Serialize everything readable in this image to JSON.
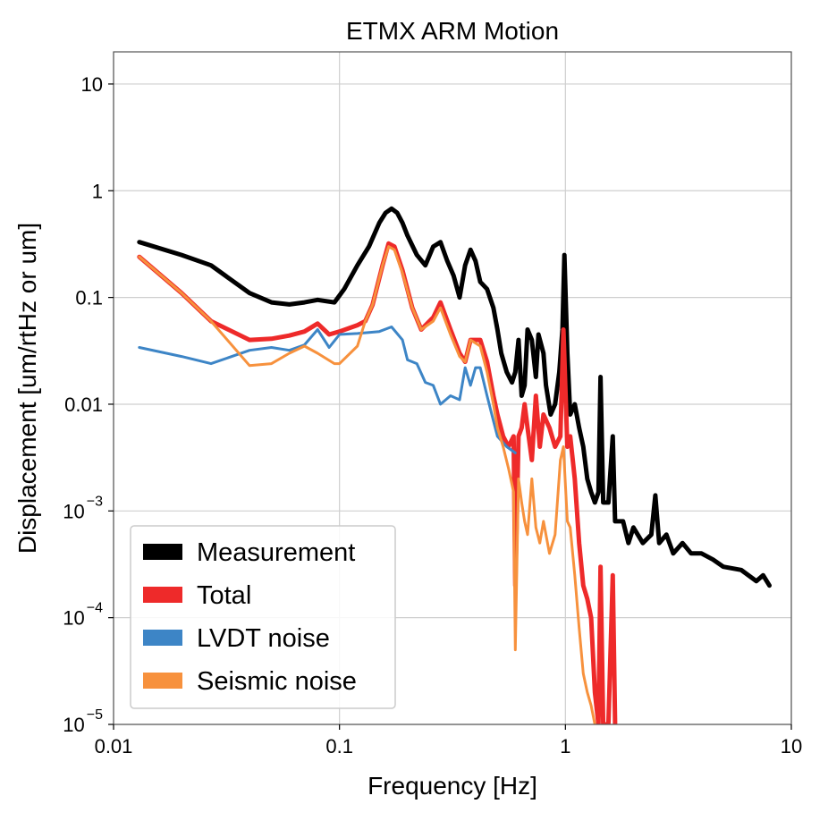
{
  "chart_data": {
    "type": "line",
    "title": "ETMX ARM Motion",
    "xlabel": "Frequency [Hz]",
    "ylabel": "Displacement [um/rtHz or um]",
    "xscale": "log",
    "yscale": "log",
    "xlim": [
      0.01,
      10
    ],
    "ylim": [
      1e-05,
      20
    ],
    "grid": true,
    "legend_position": "lower-left",
    "x_ticks": [
      {
        "value": 0.01,
        "label": "0.01"
      },
      {
        "value": 0.1,
        "label": "0.1"
      },
      {
        "value": 1,
        "label": "1"
      },
      {
        "value": 10,
        "label": "10"
      }
    ],
    "y_ticks": [
      {
        "value": 1e-05,
        "base": "10",
        "exp": "−5"
      },
      {
        "value": 0.0001,
        "base": "10",
        "exp": "−4"
      },
      {
        "value": 0.001,
        "base": "10",
        "exp": "−3"
      },
      {
        "value": 0.01,
        "label": "0.01"
      },
      {
        "value": 0.1,
        "label": "0.1"
      },
      {
        "value": 1,
        "label": "1"
      },
      {
        "value": 10,
        "label": "10"
      }
    ],
    "series": [
      {
        "name": "Measurement",
        "color": "#000000",
        "line_width": 5,
        "points": [
          [
            0.013,
            0.33
          ],
          [
            0.02,
            0.25
          ],
          [
            0.027,
            0.2
          ],
          [
            0.04,
            0.11
          ],
          [
            0.05,
            0.09
          ],
          [
            0.06,
            0.086
          ],
          [
            0.07,
            0.09
          ],
          [
            0.08,
            0.095
          ],
          [
            0.095,
            0.09
          ],
          [
            0.105,
            0.12
          ],
          [
            0.12,
            0.2
          ],
          [
            0.135,
            0.3
          ],
          [
            0.15,
            0.5
          ],
          [
            0.16,
            0.62
          ],
          [
            0.17,
            0.68
          ],
          [
            0.18,
            0.62
          ],
          [
            0.19,
            0.5
          ],
          [
            0.2,
            0.38
          ],
          [
            0.22,
            0.25
          ],
          [
            0.24,
            0.2
          ],
          [
            0.26,
            0.3
          ],
          [
            0.28,
            0.33
          ],
          [
            0.3,
            0.22
          ],
          [
            0.32,
            0.16
          ],
          [
            0.34,
            0.1
          ],
          [
            0.36,
            0.2
          ],
          [
            0.38,
            0.28
          ],
          [
            0.4,
            0.22
          ],
          [
            0.42,
            0.14
          ],
          [
            0.45,
            0.12
          ],
          [
            0.48,
            0.08
          ],
          [
            0.5,
            0.05
          ],
          [
            0.52,
            0.03
          ],
          [
            0.55,
            0.02
          ],
          [
            0.58,
            0.016
          ],
          [
            0.6,
            0.02
          ],
          [
            0.62,
            0.04
          ],
          [
            0.64,
            0.012
          ],
          [
            0.66,
            0.015
          ],
          [
            0.68,
            0.05
          ],
          [
            0.71,
            0.04
          ],
          [
            0.74,
            0.018
          ],
          [
            0.76,
            0.045
          ],
          [
            0.8,
            0.03
          ],
          [
            0.82,
            0.015
          ],
          [
            0.86,
            0.008
          ],
          [
            0.9,
            0.01
          ],
          [
            0.94,
            0.02
          ],
          [
            0.97,
            0.05
          ],
          [
            0.99,
            0.25
          ],
          [
            1.02,
            0.03
          ],
          [
            1.05,
            0.008
          ],
          [
            1.1,
            0.01
          ],
          [
            1.15,
            0.006
          ],
          [
            1.2,
            0.004
          ],
          [
            1.25,
            0.002
          ],
          [
            1.3,
            0.0015
          ],
          [
            1.35,
            0.0012
          ],
          [
            1.4,
            0.0015
          ],
          [
            1.43,
            0.018
          ],
          [
            1.47,
            0.0012
          ],
          [
            1.55,
            0.0012
          ],
          [
            1.62,
            0.005
          ],
          [
            1.66,
            0.0008
          ],
          [
            1.7,
            0.0008
          ],
          [
            1.8,
            0.0008
          ],
          [
            1.9,
            0.0005
          ],
          [
            2.0,
            0.0007
          ],
          [
            2.2,
            0.0005
          ],
          [
            2.4,
            0.0006
          ],
          [
            2.5,
            0.0014
          ],
          [
            2.6,
            0.0005
          ],
          [
            2.8,
            0.0006
          ],
          [
            3.0,
            0.0004
          ],
          [
            3.3,
            0.0005
          ],
          [
            3.6,
            0.0004
          ],
          [
            4.0,
            0.0004
          ],
          [
            4.5,
            0.00035
          ],
          [
            5.0,
            0.0003
          ],
          [
            6.0,
            0.00028
          ],
          [
            7.0,
            0.00022
          ],
          [
            7.5,
            0.00025
          ],
          [
            8.0,
            0.0002
          ]
        ]
      },
      {
        "name": "Total",
        "color": "#ee2a2a",
        "line_width": 5,
        "points": [
          [
            0.013,
            0.24
          ],
          [
            0.02,
            0.11
          ],
          [
            0.027,
            0.06
          ],
          [
            0.04,
            0.04
          ],
          [
            0.05,
            0.041
          ],
          [
            0.06,
            0.044
          ],
          [
            0.07,
            0.048
          ],
          [
            0.08,
            0.057
          ],
          [
            0.09,
            0.045
          ],
          [
            0.1,
            0.048
          ],
          [
            0.12,
            0.055
          ],
          [
            0.13,
            0.06
          ],
          [
            0.14,
            0.085
          ],
          [
            0.155,
            0.2
          ],
          [
            0.165,
            0.32
          ],
          [
            0.175,
            0.3
          ],
          [
            0.19,
            0.18
          ],
          [
            0.21,
            0.08
          ],
          [
            0.23,
            0.05
          ],
          [
            0.26,
            0.065
          ],
          [
            0.28,
            0.09
          ],
          [
            0.31,
            0.05
          ],
          [
            0.34,
            0.03
          ],
          [
            0.36,
            0.025
          ],
          [
            0.38,
            0.04
          ],
          [
            0.42,
            0.04
          ],
          [
            0.45,
            0.025
          ],
          [
            0.48,
            0.012
          ],
          [
            0.5,
            0.008
          ],
          [
            0.53,
            0.005
          ],
          [
            0.56,
            0.004
          ],
          [
            0.59,
            0.005
          ],
          [
            0.6,
            0.0002
          ],
          [
            0.62,
            0.005
          ],
          [
            0.64,
            0.006
          ],
          [
            0.66,
            0.01
          ],
          [
            0.68,
            0.006
          ],
          [
            0.71,
            0.003
          ],
          [
            0.74,
            0.012
          ],
          [
            0.77,
            0.004
          ],
          [
            0.8,
            0.008
          ],
          [
            0.85,
            0.006
          ],
          [
            0.9,
            0.004
          ],
          [
            0.95,
            0.005
          ],
          [
            0.98,
            0.05
          ],
          [
            1.02,
            0.004
          ],
          [
            1.05,
            0.005
          ],
          [
            1.1,
            0.002
          ],
          [
            1.15,
            0.0005
          ],
          [
            1.2,
            0.0002
          ],
          [
            1.25,
            0.00015
          ],
          [
            1.3,
            0.0001
          ],
          [
            1.35,
            2e-05
          ],
          [
            1.4,
            1e-05
          ],
          [
            1.43,
            0.0003
          ],
          [
            1.47,
            1e-05
          ],
          [
            1.55,
            1e-05
          ],
          [
            1.62,
            0.00025
          ],
          [
            1.66,
            1e-05
          ]
        ]
      },
      {
        "name": "LVDT noise",
        "color": "#3d85c6",
        "line_width": 3,
        "points": [
          [
            0.013,
            0.034
          ],
          [
            0.02,
            0.028
          ],
          [
            0.027,
            0.024
          ],
          [
            0.04,
            0.032
          ],
          [
            0.05,
            0.034
          ],
          [
            0.06,
            0.032
          ],
          [
            0.07,
            0.036
          ],
          [
            0.08,
            0.05
          ],
          [
            0.09,
            0.034
          ],
          [
            0.1,
            0.045
          ],
          [
            0.12,
            0.046
          ],
          [
            0.15,
            0.048
          ],
          [
            0.17,
            0.053
          ],
          [
            0.19,
            0.04
          ],
          [
            0.2,
            0.026
          ],
          [
            0.22,
            0.024
          ],
          [
            0.24,
            0.016
          ],
          [
            0.26,
            0.015
          ],
          [
            0.28,
            0.01
          ],
          [
            0.31,
            0.012
          ],
          [
            0.34,
            0.011
          ],
          [
            0.36,
            0.022
          ],
          [
            0.38,
            0.015
          ],
          [
            0.4,
            0.022
          ],
          [
            0.42,
            0.022
          ],
          [
            0.45,
            0.012
          ],
          [
            0.48,
            0.007
          ],
          [
            0.5,
            0.005
          ],
          [
            0.55,
            0.004
          ],
          [
            0.6,
            0.0035
          ]
        ]
      },
      {
        "name": "Seismic noise",
        "color": "#f7913d",
        "line_width": 3,
        "points": [
          [
            0.013,
            0.24
          ],
          [
            0.02,
            0.11
          ],
          [
            0.027,
            0.06
          ],
          [
            0.04,
            0.023
          ],
          [
            0.05,
            0.024
          ],
          [
            0.06,
            0.03
          ],
          [
            0.07,
            0.035
          ],
          [
            0.08,
            0.03
          ],
          [
            0.095,
            0.024
          ],
          [
            0.1,
            0.024
          ],
          [
            0.12,
            0.035
          ],
          [
            0.13,
            0.06
          ],
          [
            0.14,
            0.085
          ],
          [
            0.155,
            0.2
          ],
          [
            0.165,
            0.3
          ],
          [
            0.175,
            0.28
          ],
          [
            0.19,
            0.17
          ],
          [
            0.21,
            0.08
          ],
          [
            0.23,
            0.05
          ],
          [
            0.26,
            0.06
          ],
          [
            0.28,
            0.08
          ],
          [
            0.31,
            0.045
          ],
          [
            0.34,
            0.028
          ],
          [
            0.36,
            0.025
          ],
          [
            0.38,
            0.04
          ],
          [
            0.42,
            0.035
          ],
          [
            0.45,
            0.02
          ],
          [
            0.48,
            0.01
          ],
          [
            0.5,
            0.006
          ],
          [
            0.53,
            0.004
          ],
          [
            0.56,
            0.0025
          ],
          [
            0.59,
            0.0015
          ],
          [
            0.6,
            5e-05
          ],
          [
            0.62,
            0.002
          ],
          [
            0.64,
            0.0012
          ],
          [
            0.66,
            0.0008
          ],
          [
            0.68,
            0.0006
          ],
          [
            0.71,
            0.002
          ],
          [
            0.74,
            0.0007
          ],
          [
            0.77,
            0.0005
          ],
          [
            0.8,
            0.0008
          ],
          [
            0.85,
            0.0004
          ],
          [
            0.9,
            0.0006
          ],
          [
            0.95,
            0.003
          ],
          [
            0.98,
            0.004
          ],
          [
            1.02,
            0.0008
          ],
          [
            1.05,
            0.0007
          ],
          [
            1.1,
            0.00025
          ],
          [
            1.15,
            8e-05
          ],
          [
            1.2,
            3e-05
          ],
          [
            1.25,
            2e-05
          ],
          [
            1.3,
            1.5e-05
          ],
          [
            1.35,
            1e-05
          ]
        ]
      }
    ]
  }
}
